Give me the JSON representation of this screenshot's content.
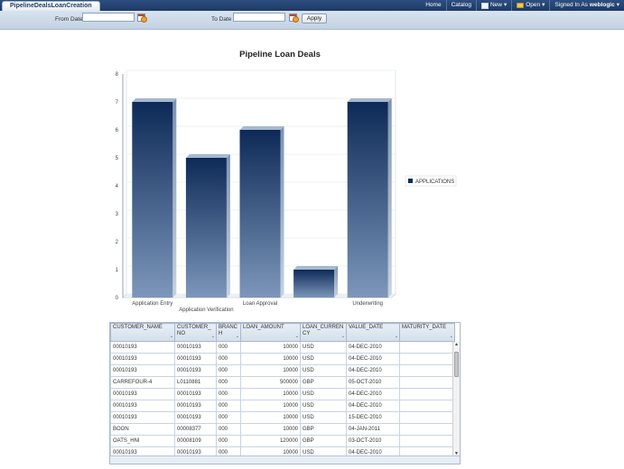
{
  "app": {
    "tab_title": "PipelineDealsLoanCreation"
  },
  "topnav": {
    "home": "Home",
    "catalog": "Catalog",
    "new": "New",
    "open": "Open",
    "signed_in_as": "Signed In As",
    "user": "weblogic"
  },
  "filters": {
    "from_label": "From Date",
    "from_value": "",
    "to_label": "To Date",
    "to_value": "",
    "apply_label": "Apply"
  },
  "chart_data": {
    "type": "bar",
    "title": "Pipeline  Loan  Deals",
    "categories": [
      "Application Entry",
      "Application Verification",
      "Loan Approval",
      "",
      "Underwriting"
    ],
    "series": [
      {
        "name": "APPLICATIONS",
        "values": [
          7,
          5,
          6,
          1,
          7
        ]
      }
    ],
    "ylim": [
      0,
      8
    ],
    "yticks": [
      "0",
      "1",
      "2",
      "3",
      "4",
      "5",
      "6",
      "7",
      "8"
    ],
    "legend": "right",
    "grid": true,
    "colors": {
      "bar_top": "#0d2a57",
      "bar_bottom": "#7d97bb"
    }
  },
  "table": {
    "columns": [
      "CUSTOMER_NAME",
      "CUSTOMER_NO",
      "BRANCH",
      "LOAN_AMOUNT",
      "LOAN_CURRENCY",
      "VALUE_DATE",
      "MATURITY_DATE"
    ],
    "rows": [
      [
        "00010193",
        "00010193",
        "000",
        "10000",
        "USD",
        "04-DEC-2010",
        ""
      ],
      [
        "00010193",
        "00010193",
        "000",
        "10000",
        "USD",
        "04-DEC-2010",
        ""
      ],
      [
        "00010193",
        "00010193",
        "000",
        "10000",
        "USD",
        "04-DEC-2010",
        ""
      ],
      [
        "CARREFOUR-4",
        "L0110881",
        "000",
        "500000",
        "GBP",
        "05-OCT-2010",
        ""
      ],
      [
        "00010193",
        "00010193",
        "000",
        "10000",
        "USD",
        "04-DEC-2010",
        ""
      ],
      [
        "00010193",
        "00010193",
        "000",
        "10000",
        "USD",
        "04-DEC-2010",
        ""
      ],
      [
        "00010193",
        "00010193",
        "000",
        "10000",
        "USD",
        "15-DEC-2010",
        ""
      ],
      [
        "BOON",
        "00008377",
        "000",
        "10000",
        "GBP",
        "04-JAN-2011",
        ""
      ],
      [
        "OATS_HNI",
        "00008109",
        "000",
        "120000",
        "GBP",
        "03-OCT-2010",
        ""
      ],
      [
        "00010193",
        "00010193",
        "000",
        "10000",
        "USD",
        "04-DEC-2010",
        ""
      ]
    ]
  }
}
